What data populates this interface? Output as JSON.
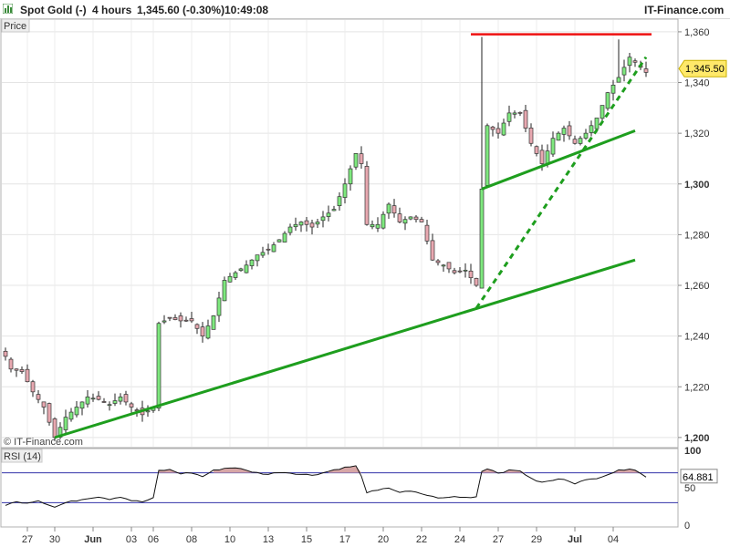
{
  "header": {
    "instrument": "Spot Gold (-)",
    "timeframe": "4 hours",
    "last_change": "1,345.60 (-0.30%)",
    "time": "10:49:08",
    "brand": "IT-Finance.com"
  },
  "price_panel": {
    "label": "Price",
    "watermark": "© IT-Finance.com"
  },
  "rsi_panel": {
    "label": "RSI (14)"
  },
  "chart_data": [
    {
      "type": "candlestick",
      "panel": "price",
      "ylim": [
        1196,
        1365
      ],
      "y_ticks": [
        1200,
        1220,
        1240,
        1260,
        1280,
        1300,
        1320,
        1340,
        1360
      ],
      "y_tick_labels": [
        "1,200",
        "1,220",
        "1,240",
        "1,260",
        "1,280",
        "1,300",
        "1,320",
        "1,340",
        "1,360"
      ],
      "current_price": 1345.5,
      "current_price_label": "1,345.50",
      "x_labels": [
        "27",
        "30",
        "Jun",
        "03",
        "06",
        "08",
        "10",
        "13",
        "15",
        "17",
        "20",
        "22",
        "24",
        "27",
        "29",
        "Jul",
        "04"
      ],
      "x_label_bars": [
        4,
        9,
        16,
        23,
        27,
        34,
        41,
        48,
        55,
        62,
        69,
        76,
        83,
        90,
        97,
        104,
        111
      ],
      "bar_count": 118,
      "close_path": [
        [
          0,
          1232
        ],
        [
          1,
          1227
        ],
        [
          3,
          1226
        ],
        [
          5,
          1218
        ],
        [
          7,
          1212
        ],
        [
          9,
          1200
        ],
        [
          11,
          1208
        ],
        [
          13,
          1212
        ],
        [
          15,
          1216
        ],
        [
          17,
          1215
        ],
        [
          19,
          1213
        ],
        [
          21,
          1216
        ],
        [
          23,
          1212
        ],
        [
          25,
          1209
        ],
        [
          27,
          1212
        ],
        [
          28,
          1245
        ],
        [
          30,
          1247
        ],
        [
          32,
          1246
        ],
        [
          34,
          1246
        ],
        [
          36,
          1240
        ],
        [
          38,
          1248
        ],
        [
          40,
          1262
        ],
        [
          42,
          1265
        ],
        [
          44,
          1268
        ],
        [
          46,
          1272
        ],
        [
          48,
          1274
        ],
        [
          50,
          1278
        ],
        [
          52,
          1283
        ],
        [
          54,
          1285
        ],
        [
          56,
          1283
        ],
        [
          58,
          1287
        ],
        [
          60,
          1290
        ],
        [
          62,
          1300
        ],
        [
          64,
          1312
        ],
        [
          65,
          1308
        ],
        [
          66,
          1284
        ],
        [
          68,
          1284
        ],
        [
          70,
          1292
        ],
        [
          72,
          1285
        ],
        [
          74,
          1287
        ],
        [
          76,
          1285
        ],
        [
          78,
          1270
        ],
        [
          80,
          1268
        ],
        [
          82,
          1265
        ],
        [
          84,
          1266
        ],
        [
          86,
          1260
        ],
        [
          87,
          1298
        ],
        [
          88,
          1323
        ],
        [
          90,
          1320
        ],
        [
          92,
          1328
        ],
        [
          94,
          1328
        ],
        [
          96,
          1316
        ],
        [
          98,
          1308
        ],
        [
          100,
          1318
        ],
        [
          102,
          1322
        ],
        [
          104,
          1316
        ],
        [
          106,
          1320
        ],
        [
          108,
          1326
        ],
        [
          110,
          1336
        ],
        [
          112,
          1342
        ],
        [
          114,
          1350
        ],
        [
          115,
          1348
        ],
        [
          117,
          1344
        ]
      ],
      "spikes": [
        {
          "bar": 87,
          "high": 1358,
          "low": 1298
        },
        {
          "bar": 112,
          "high": 1357
        }
      ]
    },
    {
      "type": "line",
      "panel": "price",
      "series": [
        {
          "color": "#1e9e1e",
          "style": "solid",
          "x": [
            9,
            115
          ],
          "values": [
            1200,
            1270
          ]
        },
        {
          "color": "#1e9e1e",
          "style": "solid",
          "x": [
            87,
            115
          ],
          "values": [
            1298,
            1321
          ]
        },
        {
          "color": "#1e9e1e",
          "style": "dashed",
          "x": [
            86,
            117
          ],
          "values": [
            1251,
            1350
          ]
        },
        {
          "color": "#ee1111",
          "style": "solid",
          "x": [
            85,
            118
          ],
          "values": [
            1359,
            1359
          ]
        }
      ]
    },
    {
      "type": "line",
      "panel": "rsi",
      "title": "RSI (14)",
      "ylim": [
        0,
        100
      ],
      "y_ticks": [
        0,
        50,
        100
      ],
      "y_tick_labels": [
        "0",
        "50",
        "100"
      ],
      "bands": [
        30,
        70
      ],
      "current_value": 64.881,
      "current_value_label": "64.881",
      "values_path": [
        [
          0,
          27
        ],
        [
          2,
          31
        ],
        [
          4,
          30
        ],
        [
          6,
          33
        ],
        [
          8,
          27
        ],
        [
          9,
          24
        ],
        [
          11,
          30
        ],
        [
          13,
          33
        ],
        [
          15,
          36
        ],
        [
          17,
          38
        ],
        [
          19,
          35
        ],
        [
          21,
          38
        ],
        [
          23,
          33
        ],
        [
          25,
          31
        ],
        [
          27,
          36
        ],
        [
          28,
          73
        ],
        [
          30,
          74
        ],
        [
          32,
          69
        ],
        [
          34,
          70
        ],
        [
          36,
          65
        ],
        [
          38,
          73
        ],
        [
          40,
          76
        ],
        [
          42,
          77
        ],
        [
          44,
          73
        ],
        [
          46,
          70
        ],
        [
          48,
          68
        ],
        [
          50,
          71
        ],
        [
          52,
          70
        ],
        [
          54,
          68
        ],
        [
          56,
          67
        ],
        [
          58,
          70
        ],
        [
          60,
          74
        ],
        [
          62,
          77
        ],
        [
          64,
          79
        ],
        [
          65,
          65
        ],
        [
          66,
          44
        ],
        [
          68,
          46
        ],
        [
          70,
          50
        ],
        [
          72,
          44
        ],
        [
          74,
          45
        ],
        [
          76,
          42
        ],
        [
          78,
          38
        ],
        [
          80,
          36
        ],
        [
          82,
          38
        ],
        [
          84,
          37
        ],
        [
          86,
          38
        ],
        [
          87,
          72
        ],
        [
          88,
          76
        ],
        [
          90,
          70
        ],
        [
          92,
          73
        ],
        [
          94,
          73
        ],
        [
          96,
          62
        ],
        [
          98,
          57
        ],
        [
          100,
          60
        ],
        [
          102,
          62
        ],
        [
          104,
          56
        ],
        [
          106,
          60
        ],
        [
          108,
          63
        ],
        [
          110,
          68
        ],
        [
          112,
          73
        ],
        [
          114,
          76
        ],
        [
          115,
          74
        ],
        [
          117,
          64
        ]
      ]
    }
  ]
}
